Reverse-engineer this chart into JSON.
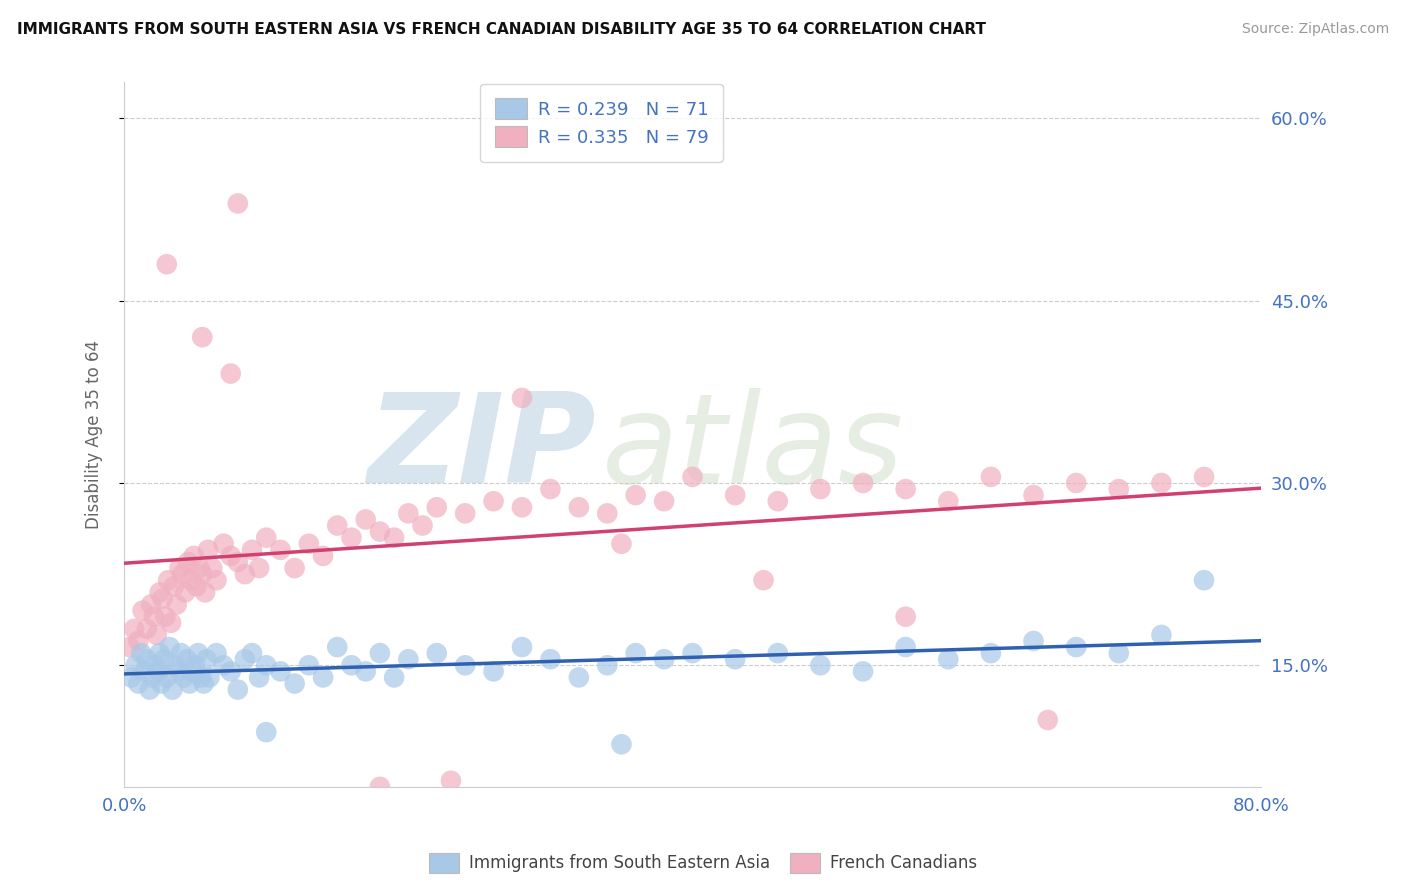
{
  "title": "IMMIGRANTS FROM SOUTH EASTERN ASIA VS FRENCH CANADIAN DISABILITY AGE 35 TO 64 CORRELATION CHART",
  "source": "Source: ZipAtlas.com",
  "ylabel": "Disability Age 35 to 64",
  "xmin": 0.0,
  "xmax": 80.0,
  "ymin": 5.0,
  "ymax": 63.0,
  "yticks": [
    15.0,
    30.0,
    45.0,
    60.0
  ],
  "blue_R": 0.239,
  "blue_N": 71,
  "pink_R": 0.335,
  "pink_N": 79,
  "blue_color": "#a8c8e8",
  "pink_color": "#f0b0c0",
  "blue_line_color": "#3060b0",
  "pink_line_color": "#d04070",
  "label_blue": "Immigrants from South Eastern Asia",
  "label_pink": "French Canadians",
  "watermark_zip": "ZIP",
  "watermark_atlas": "atlas",
  "blue_scatter_x": [
    0.5,
    0.8,
    1.0,
    1.2,
    1.4,
    1.6,
    1.8,
    2.0,
    2.2,
    2.4,
    2.5,
    2.6,
    2.8,
    3.0,
    3.2,
    3.4,
    3.6,
    3.8,
    4.0,
    4.2,
    4.4,
    4.6,
    4.8,
    5.0,
    5.2,
    5.4,
    5.6,
    5.8,
    6.0,
    6.5,
    7.0,
    7.5,
    8.0,
    8.5,
    9.0,
    9.5,
    10.0,
    11.0,
    12.0,
    13.0,
    14.0,
    15.0,
    16.0,
    17.0,
    18.0,
    19.0,
    20.0,
    22.0,
    24.0,
    26.0,
    28.0,
    30.0,
    32.0,
    34.0,
    36.0,
    38.0,
    40.0,
    43.0,
    46.0,
    49.0,
    52.0,
    55.0,
    58.0,
    61.0,
    64.0,
    67.0,
    70.0,
    73.0,
    76.0,
    35.0,
    10.0
  ],
  "blue_scatter_y": [
    14.0,
    15.0,
    13.5,
    16.0,
    14.5,
    15.5,
    13.0,
    14.0,
    15.0,
    14.5,
    16.0,
    13.5,
    15.5,
    14.0,
    16.5,
    13.0,
    15.0,
    14.5,
    16.0,
    14.0,
    15.5,
    13.5,
    14.5,
    15.0,
    16.0,
    14.0,
    13.5,
    15.5,
    14.0,
    16.0,
    15.0,
    14.5,
    13.0,
    15.5,
    16.0,
    14.0,
    15.0,
    14.5,
    13.5,
    15.0,
    14.0,
    16.5,
    15.0,
    14.5,
    16.0,
    14.0,
    15.5,
    16.0,
    15.0,
    14.5,
    16.5,
    15.5,
    14.0,
    15.0,
    16.0,
    15.5,
    16.0,
    15.5,
    16.0,
    15.0,
    14.5,
    16.5,
    15.5,
    16.0,
    17.0,
    16.5,
    16.0,
    17.5,
    22.0,
    8.5,
    9.5
  ],
  "pink_scatter_x": [
    0.4,
    0.7,
    1.0,
    1.3,
    1.6,
    1.9,
    2.1,
    2.3,
    2.5,
    2.7,
    2.9,
    3.1,
    3.3,
    3.5,
    3.7,
    3.9,
    4.1,
    4.3,
    4.5,
    4.7,
    4.9,
    5.1,
    5.3,
    5.5,
    5.7,
    5.9,
    6.2,
    6.5,
    7.0,
    7.5,
    8.0,
    8.5,
    9.0,
    9.5,
    10.0,
    11.0,
    12.0,
    13.0,
    14.0,
    15.0,
    16.0,
    17.0,
    18.0,
    19.0,
    20.0,
    21.0,
    22.0,
    24.0,
    26.0,
    28.0,
    30.0,
    32.0,
    34.0,
    36.0,
    38.0,
    40.0,
    43.0,
    46.0,
    49.0,
    52.0,
    55.0,
    58.0,
    61.0,
    64.0,
    67.0,
    70.0,
    73.0,
    76.0,
    3.0,
    5.5,
    7.5,
    28.0,
    35.0,
    45.0,
    55.0,
    65.0,
    18.0,
    23.0,
    8.0
  ],
  "pink_scatter_y": [
    16.5,
    18.0,
    17.0,
    19.5,
    18.0,
    20.0,
    19.0,
    17.5,
    21.0,
    20.5,
    19.0,
    22.0,
    18.5,
    21.5,
    20.0,
    23.0,
    22.5,
    21.0,
    23.5,
    22.0,
    24.0,
    21.5,
    23.0,
    22.5,
    21.0,
    24.5,
    23.0,
    22.0,
    25.0,
    24.0,
    23.5,
    22.5,
    24.5,
    23.0,
    25.5,
    24.5,
    23.0,
    25.0,
    24.0,
    26.5,
    25.5,
    27.0,
    26.0,
    25.5,
    27.5,
    26.5,
    28.0,
    27.5,
    28.5,
    28.0,
    29.5,
    28.0,
    27.5,
    29.0,
    28.5,
    30.5,
    29.0,
    28.5,
    29.5,
    30.0,
    29.5,
    28.5,
    30.5,
    29.0,
    30.0,
    29.5,
    30.0,
    30.5,
    48.0,
    42.0,
    39.0,
    37.0,
    25.0,
    22.0,
    19.0,
    10.5,
    5.0,
    5.5,
    53.0
  ]
}
